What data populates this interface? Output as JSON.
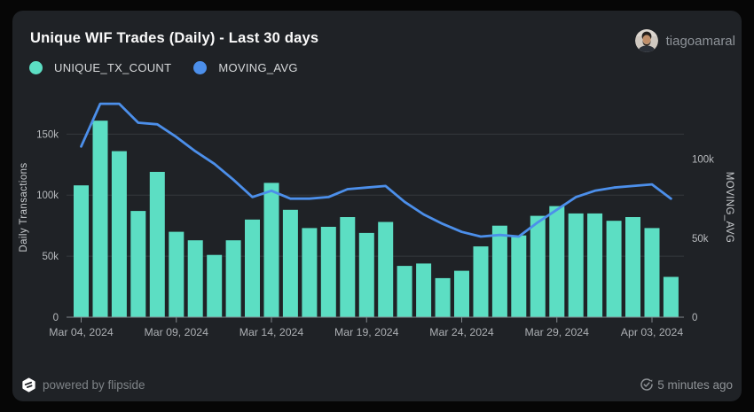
{
  "header": {
    "title": "Unique WIF Trades (Daily) - Last 30 days",
    "username": "tiagoamaral"
  },
  "legend": {
    "items": [
      {
        "label": "UNIQUE_TX_COUNT",
        "color": "#5cdec3"
      },
      {
        "label": "MOVING_AVG",
        "color": "#4c8fea"
      }
    ]
  },
  "chart_data": {
    "type": "bar",
    "subtype": "combo-bar-line-dual-axis",
    "title": "Unique WIF Trades (Daily) - Last 30 days",
    "x": [
      "Mar 04, 2024",
      "Mar 05, 2024",
      "Mar 06, 2024",
      "Mar 07, 2024",
      "Mar 08, 2024",
      "Mar 09, 2024",
      "Mar 10, 2024",
      "Mar 11, 2024",
      "Mar 12, 2024",
      "Mar 13, 2024",
      "Mar 14, 2024",
      "Mar 15, 2024",
      "Mar 16, 2024",
      "Mar 17, 2024",
      "Mar 18, 2024",
      "Mar 19, 2024",
      "Mar 20, 2024",
      "Mar 21, 2024",
      "Mar 22, 2024",
      "Mar 23, 2024",
      "Mar 24, 2024",
      "Mar 25, 2024",
      "Mar 26, 2024",
      "Mar 27, 2024",
      "Mar 28, 2024",
      "Mar 29, 2024",
      "Mar 30, 2024",
      "Mar 31, 2024",
      "Apr 01, 2024",
      "Apr 02, 2024",
      "Apr 03, 2024",
      "Apr 04, 2024"
    ],
    "x_tick_indices": [
      0,
      5,
      10,
      15,
      20,
      25,
      30
    ],
    "series": [
      {
        "name": "UNIQUE_TX_COUNT",
        "type": "bar",
        "yaxis": "left",
        "color": "#5cdec3",
        "values": [
          108000,
          161000,
          136000,
          87000,
          119000,
          70000,
          63000,
          51000,
          63000,
          80000,
          110000,
          88000,
          73000,
          74000,
          82000,
          69000,
          78000,
          42000,
          44000,
          32000,
          38000,
          58000,
          75000,
          67000,
          83000,
          91000,
          85000,
          85000,
          79000,
          82000,
          73000,
          33000
        ]
      },
      {
        "name": "MOVING_AVG",
        "type": "line",
        "yaxis": "right",
        "color": "#4c8fea",
        "values": [
          108000,
          135000,
          135000,
          123000,
          122000,
          114000,
          105000,
          97000,
          87000,
          76000,
          80000,
          75000,
          75000,
          76000,
          81000,
          82000,
          83000,
          73000,
          65000,
          59000,
          54000,
          51000,
          52000,
          51000,
          60000,
          68000,
          76000,
          80000,
          82000,
          83000,
          84000,
          75000
        ]
      }
    ],
    "left_axis": {
      "label": "Daily Transactions",
      "max": 180000,
      "ticks": [
        {
          "value": 0,
          "label": "0"
        },
        {
          "value": 50000,
          "label": "50k"
        },
        {
          "value": 100000,
          "label": "100k"
        },
        {
          "value": 150000,
          "label": "150k"
        }
      ]
    },
    "right_axis": {
      "label": "MOVING_AVG",
      "max": 139000,
      "ticks": [
        {
          "value": 0,
          "label": "0"
        },
        {
          "value": 50000,
          "label": "50k"
        },
        {
          "value": 100000,
          "label": "100k"
        }
      ]
    },
    "grid": true,
    "legend_position": "top-left"
  },
  "footer": {
    "powered_by": "powered by flipside",
    "updated": "5 minutes ago"
  }
}
